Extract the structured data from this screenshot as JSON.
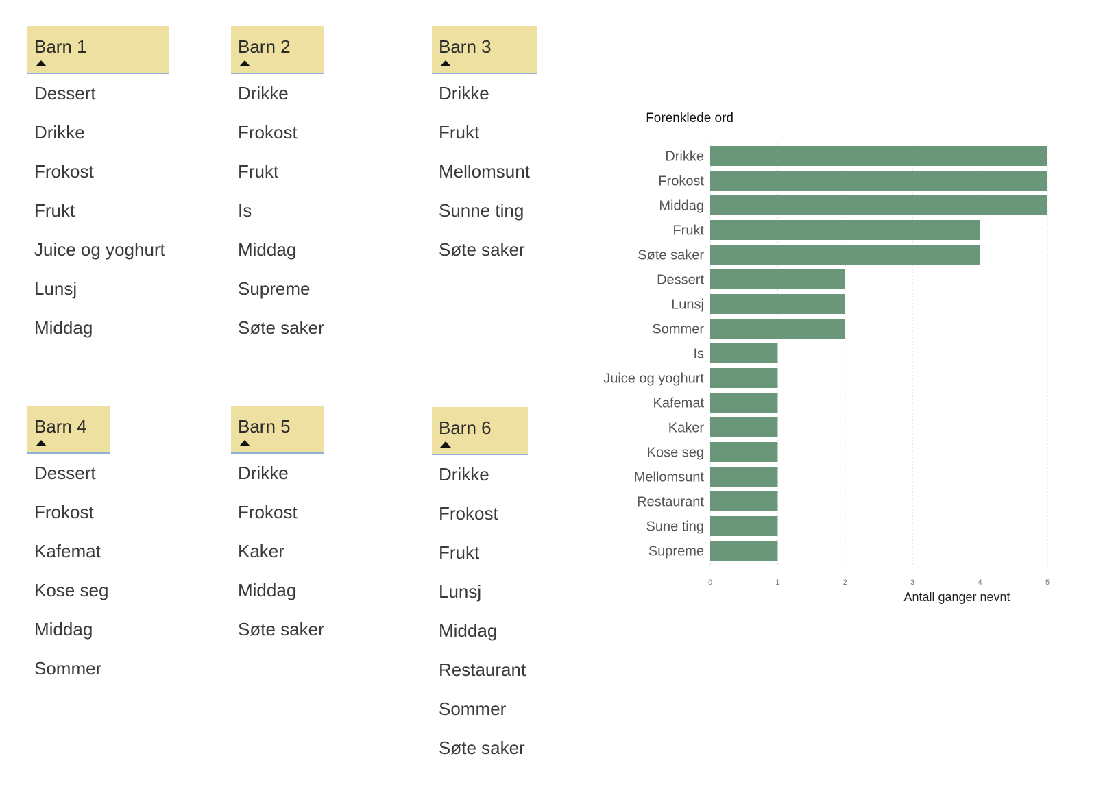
{
  "tables": [
    {
      "id": "tb1",
      "header": "Barn 1",
      "rows": [
        "Dessert",
        "Drikke",
        "Frokost",
        "Frukt",
        "Juice og yoghurt",
        "Lunsj",
        "Middag"
      ]
    },
    {
      "id": "tb2",
      "header": "Barn 2",
      "rows": [
        "Drikke",
        "Frokost",
        "Frukt",
        "Is",
        "Middag",
        "Supreme",
        "Søte saker"
      ]
    },
    {
      "id": "tb3",
      "header": "Barn 3",
      "rows": [
        "Drikke",
        "Frukt",
        "Mellomsunt",
        "Sunne ting",
        "Søte saker"
      ]
    },
    {
      "id": "tb4",
      "header": "Barn 4",
      "rows": [
        "Dessert",
        "Frokost",
        "Kafemat",
        "Kose seg",
        "Middag",
        "Sommer"
      ]
    },
    {
      "id": "tb5",
      "header": "Barn 5",
      "rows": [
        "Drikke",
        "Frokost",
        "Kaker",
        "Middag",
        "Søte saker"
      ]
    },
    {
      "id": "tb6",
      "header": "Barn 6",
      "rows": [
        "Drikke",
        "Frokost",
        "Frukt",
        "Lunsj",
        "Middag",
        "Restaurant",
        "Sommer",
        "Søte saker"
      ]
    }
  ],
  "chart_data": {
    "type": "bar",
    "orientation": "horizontal",
    "title": "Forenklede ord",
    "xlabel": "Antall ganger nevnt",
    "ylabel": "",
    "categories": [
      "Drikke",
      "Frokost",
      "Middag",
      "Frukt",
      "Søte saker",
      "Dessert",
      "Lunsj",
      "Sommer",
      "Is",
      "Juice og yoghurt",
      "Kafemat",
      "Kaker",
      "Kose seg",
      "Mellomsunt",
      "Restaurant",
      "Sune ting",
      "Supreme"
    ],
    "values": [
      5,
      5,
      5,
      4,
      4,
      2,
      2,
      2,
      1,
      1,
      1,
      1,
      1,
      1,
      1,
      1,
      1
    ],
    "xlim": [
      0,
      5
    ],
    "xticks": [
      "0",
      "1",
      "2",
      "3",
      "4",
      "5"
    ],
    "grid": true,
    "bar_color": "#6a9679"
  }
}
